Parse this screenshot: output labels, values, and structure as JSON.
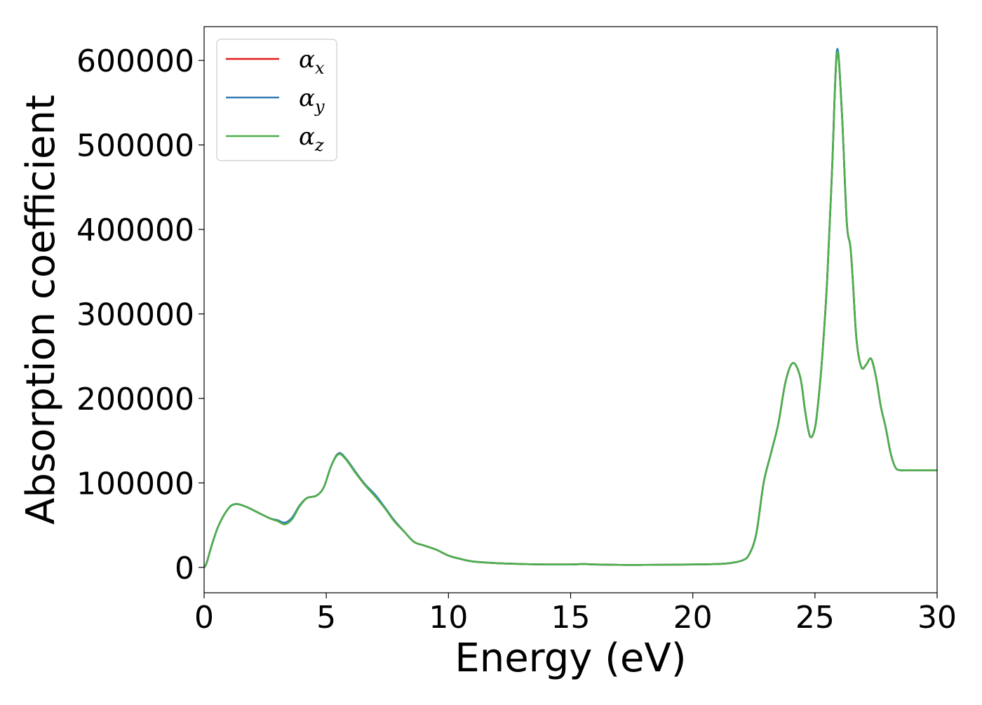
{
  "chart_data": {
    "type": "line",
    "title": "",
    "xlabel": "Energy (eV)",
    "ylabel": "Absorption coefficient",
    "xlim": [
      0,
      30
    ],
    "ylim": [
      -30000,
      640000
    ],
    "xticks": [
      0,
      5,
      10,
      15,
      20,
      25,
      30
    ],
    "xtick_labels": [
      "0",
      "5",
      "10",
      "15",
      "20",
      "25",
      "30"
    ],
    "yticks": [
      0,
      100000,
      200000,
      300000,
      400000,
      500000,
      600000
    ],
    "ytick_labels": [
      "0",
      "100000",
      "200000",
      "300000",
      "400000",
      "500000",
      "600000"
    ],
    "grid": false,
    "legend_position": "top-left",
    "legend": [
      {
        "symbol": "α",
        "subscript": "x",
        "color": "#e41a1c"
      },
      {
        "symbol": "α",
        "subscript": "y",
        "color": "#377eb8"
      },
      {
        "symbol": "α",
        "subscript": "z",
        "color": "#4daf4a"
      }
    ],
    "x": [
      0,
      0.1,
      0.3,
      0.6,
      1.0,
      1.3,
      1.7,
      2.2,
      2.7,
      3.0,
      3.3,
      3.6,
      3.9,
      4.2,
      4.6,
      4.9,
      5.2,
      5.5,
      5.8,
      6.2,
      6.6,
      7.0,
      7.4,
      7.8,
      8.2,
      8.6,
      9.0,
      9.5,
      10.0,
      10.5,
      11.0,
      12.0,
      13.0,
      14.0,
      15.0,
      15.5,
      16.0,
      17.0,
      18.0,
      19.0,
      20.0,
      21.0,
      21.5,
      22.0,
      22.3,
      22.6,
      22.9,
      23.2,
      23.5,
      23.8,
      24.1,
      24.4,
      24.6,
      24.8,
      25.0,
      25.15,
      25.3,
      25.5,
      25.7,
      25.9,
      26.1,
      26.3,
      26.45,
      26.55,
      26.7,
      26.9,
      27.1,
      27.3,
      27.5,
      27.7,
      27.9,
      28.1,
      28.3,
      28.5,
      28.7,
      29.0,
      29.3,
      29.6,
      30.0
    ],
    "series": [
      {
        "color": "#e41a1c",
        "values": [
          0,
          5000,
          25000,
          50000,
          70000,
          75000,
          72000,
          65000,
          58000,
          55000,
          52000,
          58000,
          72000,
          82000,
          85000,
          95000,
          120000,
          135000,
          128000,
          112000,
          97000,
          85000,
          70000,
          55000,
          42000,
          30000,
          26000,
          21000,
          14000,
          10000,
          7000,
          5000,
          4000,
          3500,
          3500,
          4000,
          3500,
          3000,
          3000,
          3200,
          3500,
          4000,
          5000,
          8000,
          15000,
          40000,
          100000,
          135000,
          170000,
          220000,
          242000,
          225000,
          185000,
          155000,
          165000,
          200000,
          250000,
          340000,
          470000,
          610000,
          540000,
          410000,
          380000,
          340000,
          270000,
          237000,
          240000,
          247000,
          225000,
          190000,
          165000,
          135000,
          118000,
          115000,
          115000,
          115000,
          115000,
          115000,
          115000
        ]
      },
      {
        "color": "#377eb8",
        "values": [
          0,
          5000,
          25000,
          50000,
          70000,
          75000,
          72000,
          65000,
          58000,
          56000,
          53000,
          59000,
          73000,
          82000,
          85000,
          95000,
          120000,
          135000,
          129000,
          113000,
          98000,
          86000,
          71000,
          55000,
          42000,
          30000,
          26000,
          21000,
          14000,
          10000,
          7000,
          5000,
          4000,
          3500,
          3500,
          4000,
          3500,
          3000,
          3000,
          3200,
          3500,
          4000,
          5000,
          8000,
          15000,
          40000,
          100000,
          135000,
          170000,
          220000,
          242000,
          225000,
          185000,
          155000,
          165000,
          200000,
          250000,
          340000,
          470000,
          612000,
          540000,
          410000,
          380000,
          340000,
          270000,
          237000,
          240000,
          247000,
          225000,
          190000,
          165000,
          135000,
          118000,
          115000,
          115000,
          115000,
          115000,
          115000,
          115000
        ]
      },
      {
        "color": "#4daf4a",
        "values": [
          0,
          5000,
          25000,
          50000,
          70000,
          75000,
          72000,
          65000,
          58000,
          55000,
          51000,
          57000,
          72000,
          82000,
          85000,
          95000,
          120000,
          134000,
          128000,
          112000,
          97000,
          84000,
          70000,
          54000,
          42000,
          30000,
          26000,
          21000,
          14000,
          10000,
          7000,
          5000,
          4000,
          3500,
          3500,
          4000,
          3500,
          3000,
          3000,
          3200,
          3500,
          4000,
          5000,
          8000,
          15000,
          40000,
          100000,
          135000,
          170000,
          220000,
          242000,
          225000,
          185000,
          155000,
          165000,
          200000,
          250000,
          340000,
          470000,
          608000,
          540000,
          410000,
          380000,
          340000,
          270000,
          237000,
          240000,
          247000,
          225000,
          190000,
          165000,
          135000,
          118000,
          115000,
          115000,
          115000,
          115000,
          115000,
          115000
        ]
      }
    ]
  }
}
